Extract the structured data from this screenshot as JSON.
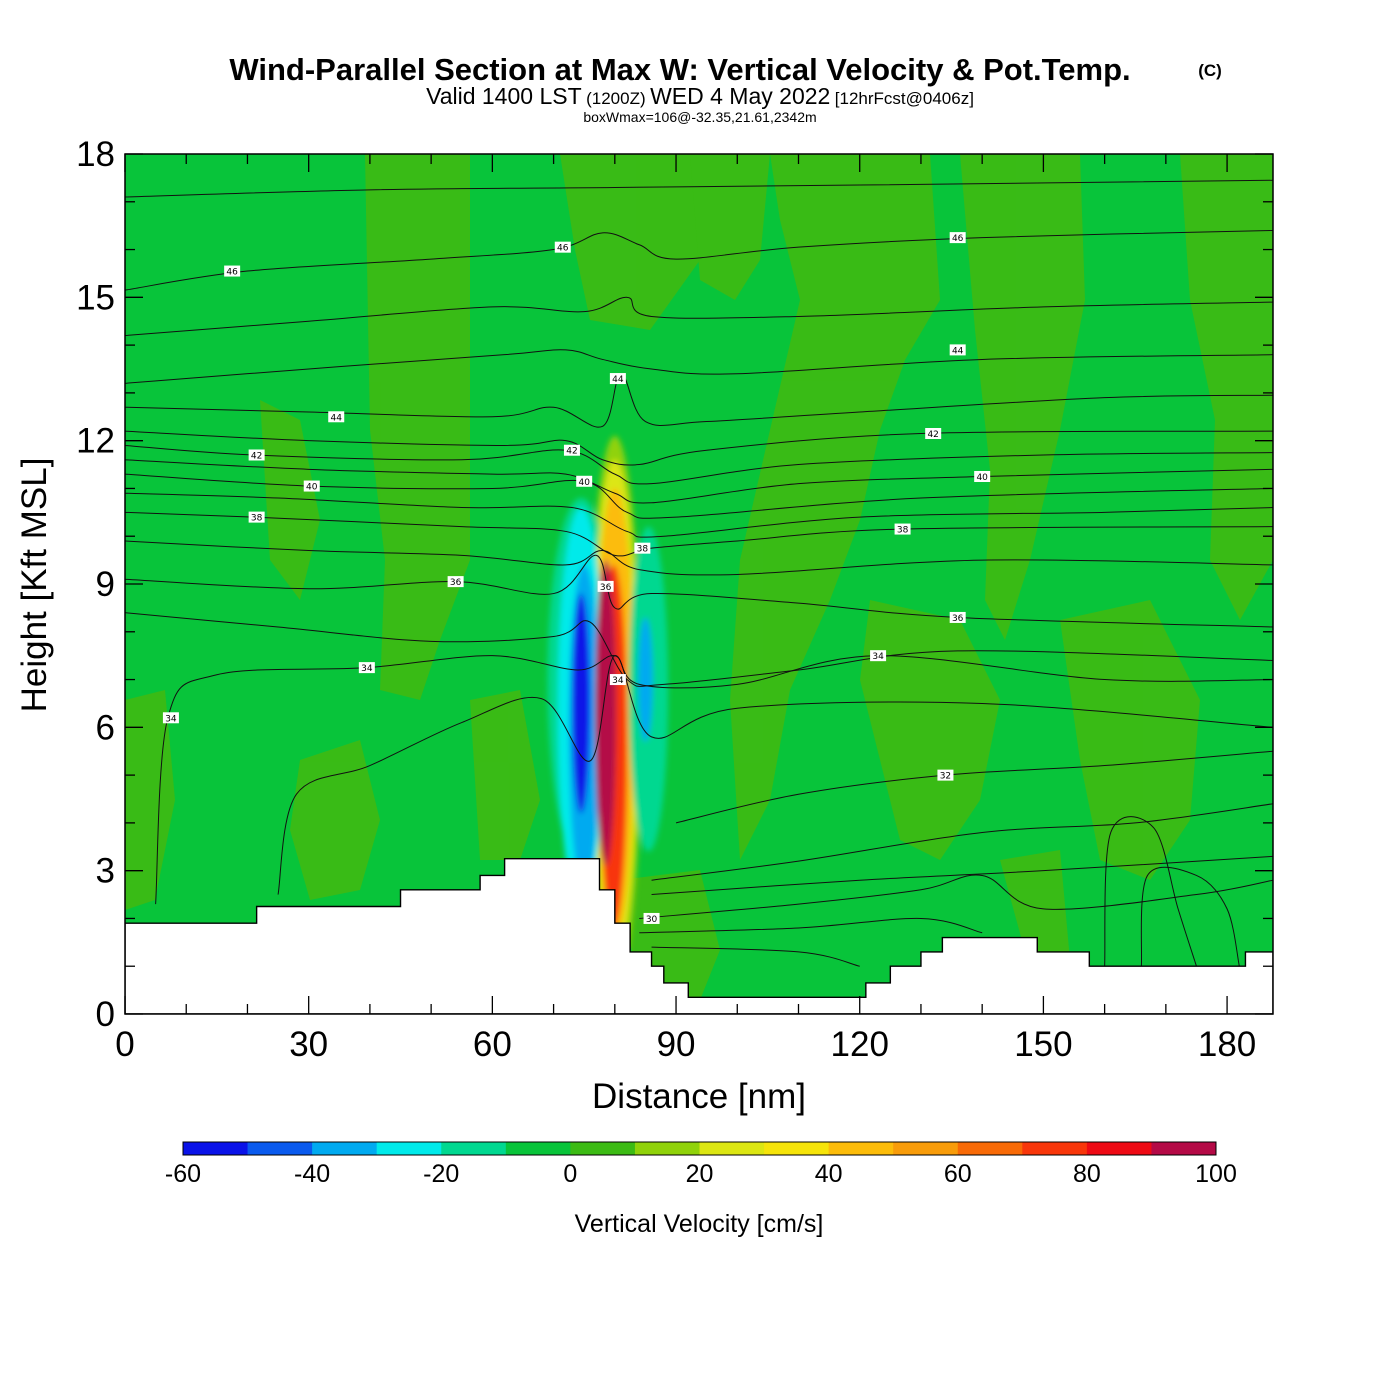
{
  "chart_data": {
    "type": "heatmap",
    "title": "Wind-Parallel Section at Max W: Vertical Velocity & Pot.Temp.",
    "title_mark": "(C)",
    "subtitle": {
      "valid": "Valid 1400 LST",
      "utc": "(1200Z)",
      "date": "WED 4 May 2022",
      "forecast": "[12hrFcst@0406z]"
    },
    "annotation": "boxWmax=106@-32.35,21.61,2342m",
    "xlabel": "Distance [nm]",
    "ylabel": "Height [Kft MSL]",
    "xlim": [
      0,
      187.5
    ],
    "ylim": [
      0,
      18
    ],
    "x_ticks": [
      0,
      30,
      60,
      90,
      120,
      150,
      180
    ],
    "y_ticks": [
      0,
      3,
      6,
      9,
      12,
      15,
      18
    ],
    "colorbar": {
      "title": "Vertical Velocity [cm/s]",
      "levels": [
        -60,
        -50,
        -40,
        -30,
        -20,
        -10,
        0,
        10,
        20,
        30,
        40,
        50,
        60,
        70,
        80,
        90,
        100
      ],
      "tick_labels": [
        "-60",
        "-40",
        "-20",
        "0",
        "20",
        "40",
        "60",
        "80",
        "100"
      ],
      "colors": [
        "#0a12e8",
        "#0a5aee",
        "#00aaf0",
        "#00eaea",
        "#00d890",
        "#08c43a",
        "#3cbb14",
        "#90d20a",
        "#dce612",
        "#f6e40a",
        "#fcbc0a",
        "#f89c0a",
        "#f86a06",
        "#f8360a",
        "#ee0a14",
        "#b40a46"
      ]
    },
    "terrain_kft": [
      [
        0,
        1.9
      ],
      [
        21.5,
        1.9
      ],
      [
        21.5,
        2.25
      ],
      [
        45,
        2.25
      ],
      [
        45,
        2.6
      ],
      [
        58,
        2.6
      ],
      [
        58,
        2.9
      ],
      [
        62,
        2.9
      ],
      [
        62,
        3.25
      ],
      [
        77.5,
        3.25
      ],
      [
        77.5,
        2.6
      ],
      [
        80,
        2.6
      ],
      [
        80,
        1.9
      ],
      [
        82.5,
        1.9
      ],
      [
        82.5,
        1.3
      ],
      [
        86,
        1.3
      ],
      [
        86,
        1.0
      ],
      [
        88,
        1.0
      ],
      [
        88,
        0.65
      ],
      [
        92,
        0.65
      ],
      [
        92,
        0.35
      ],
      [
        121,
        0.35
      ],
      [
        121,
        0.65
      ],
      [
        125,
        0.65
      ],
      [
        125,
        1.0
      ],
      [
        130,
        1.0
      ],
      [
        130,
        1.3
      ],
      [
        133.5,
        1.3
      ],
      [
        133.5,
        1.6
      ],
      [
        149,
        1.6
      ],
      [
        149,
        1.3
      ],
      [
        157.5,
        1.3
      ],
      [
        157.5,
        1.0
      ],
      [
        183,
        1.0
      ],
      [
        183,
        1.3
      ],
      [
        187.5,
        1.3
      ]
    ],
    "w_field": [
      {
        "x": 78.5,
        "y": 6.3,
        "rx": 1.7,
        "ry": 3.2,
        "value": 90
      },
      {
        "x": 79.8,
        "y": 5.6,
        "rx": 2.2,
        "ry": 3.8,
        "value": 75
      },
      {
        "x": 80,
        "y": 6.3,
        "rx": 3.1,
        "ry": 4.7,
        "value": 45
      },
      {
        "x": 80,
        "y": 6.3,
        "rx": 3.7,
        "ry": 5.3,
        "value": 25
      },
      {
        "x": 80,
        "y": 6.3,
        "rx": 4.3,
        "ry": 5.8,
        "value": 15
      },
      {
        "x": 74.5,
        "y": 6.5,
        "rx": 1.5,
        "ry": 2.3,
        "value": -55
      },
      {
        "x": 75,
        "y": 6.0,
        "rx": 2.5,
        "ry": 3.4,
        "value": -40
      },
      {
        "x": 74.5,
        "y": 6.4,
        "rx": 3.8,
        "ry": 4.2,
        "value": -25
      },
      {
        "x": 85.5,
        "y": 6.8,
        "rx": 3.2,
        "ry": 3.4,
        "value": -20
      },
      {
        "x": 85,
        "y": 7.0,
        "rx": 1.2,
        "ry": 1.3,
        "value": -35
      },
      {
        "x": 74.5,
        "y": 7.0,
        "rx": 5.5,
        "ry": 3.8,
        "value": -15
      }
    ],
    "theta_labels": [
      {
        "x": 17.5,
        "y": 15.55,
        "text": "46"
      },
      {
        "x": 71.5,
        "y": 16.05,
        "text": "46"
      },
      {
        "x": 136,
        "y": 16.25,
        "text": "46"
      },
      {
        "x": 80.5,
        "y": 13.3,
        "text": "44"
      },
      {
        "x": 34.5,
        "y": 12.5,
        "text": "44"
      },
      {
        "x": 136,
        "y": 13.9,
        "text": "44"
      },
      {
        "x": 21.5,
        "y": 11.7,
        "text": "42"
      },
      {
        "x": 73,
        "y": 11.8,
        "text": "42"
      },
      {
        "x": 132,
        "y": 12.15,
        "text": "42"
      },
      {
        "x": 30.5,
        "y": 11.05,
        "text": "40"
      },
      {
        "x": 75,
        "y": 11.15,
        "text": "40"
      },
      {
        "x": 140,
        "y": 11.25,
        "text": "40"
      },
      {
        "x": 21.5,
        "y": 10.4,
        "text": "38"
      },
      {
        "x": 84.5,
        "y": 9.75,
        "text": "38"
      },
      {
        "x": 127,
        "y": 10.15,
        "text": "38"
      },
      {
        "x": 54,
        "y": 9.05,
        "text": "36"
      },
      {
        "x": 78.5,
        "y": 8.95,
        "text": "36"
      },
      {
        "x": 136,
        "y": 8.3,
        "text": "36"
      },
      {
        "x": 39.5,
        "y": 7.25,
        "text": "34"
      },
      {
        "x": 7.5,
        "y": 6.2,
        "text": "34"
      },
      {
        "x": 80.5,
        "y": 7.0,
        "text": "34"
      },
      {
        "x": 123,
        "y": 7.5,
        "text": "34"
      },
      {
        "x": 134,
        "y": 5.0,
        "text": "32"
      },
      {
        "x": 86,
        "y": 2.0,
        "text": "30"
      }
    ]
  }
}
